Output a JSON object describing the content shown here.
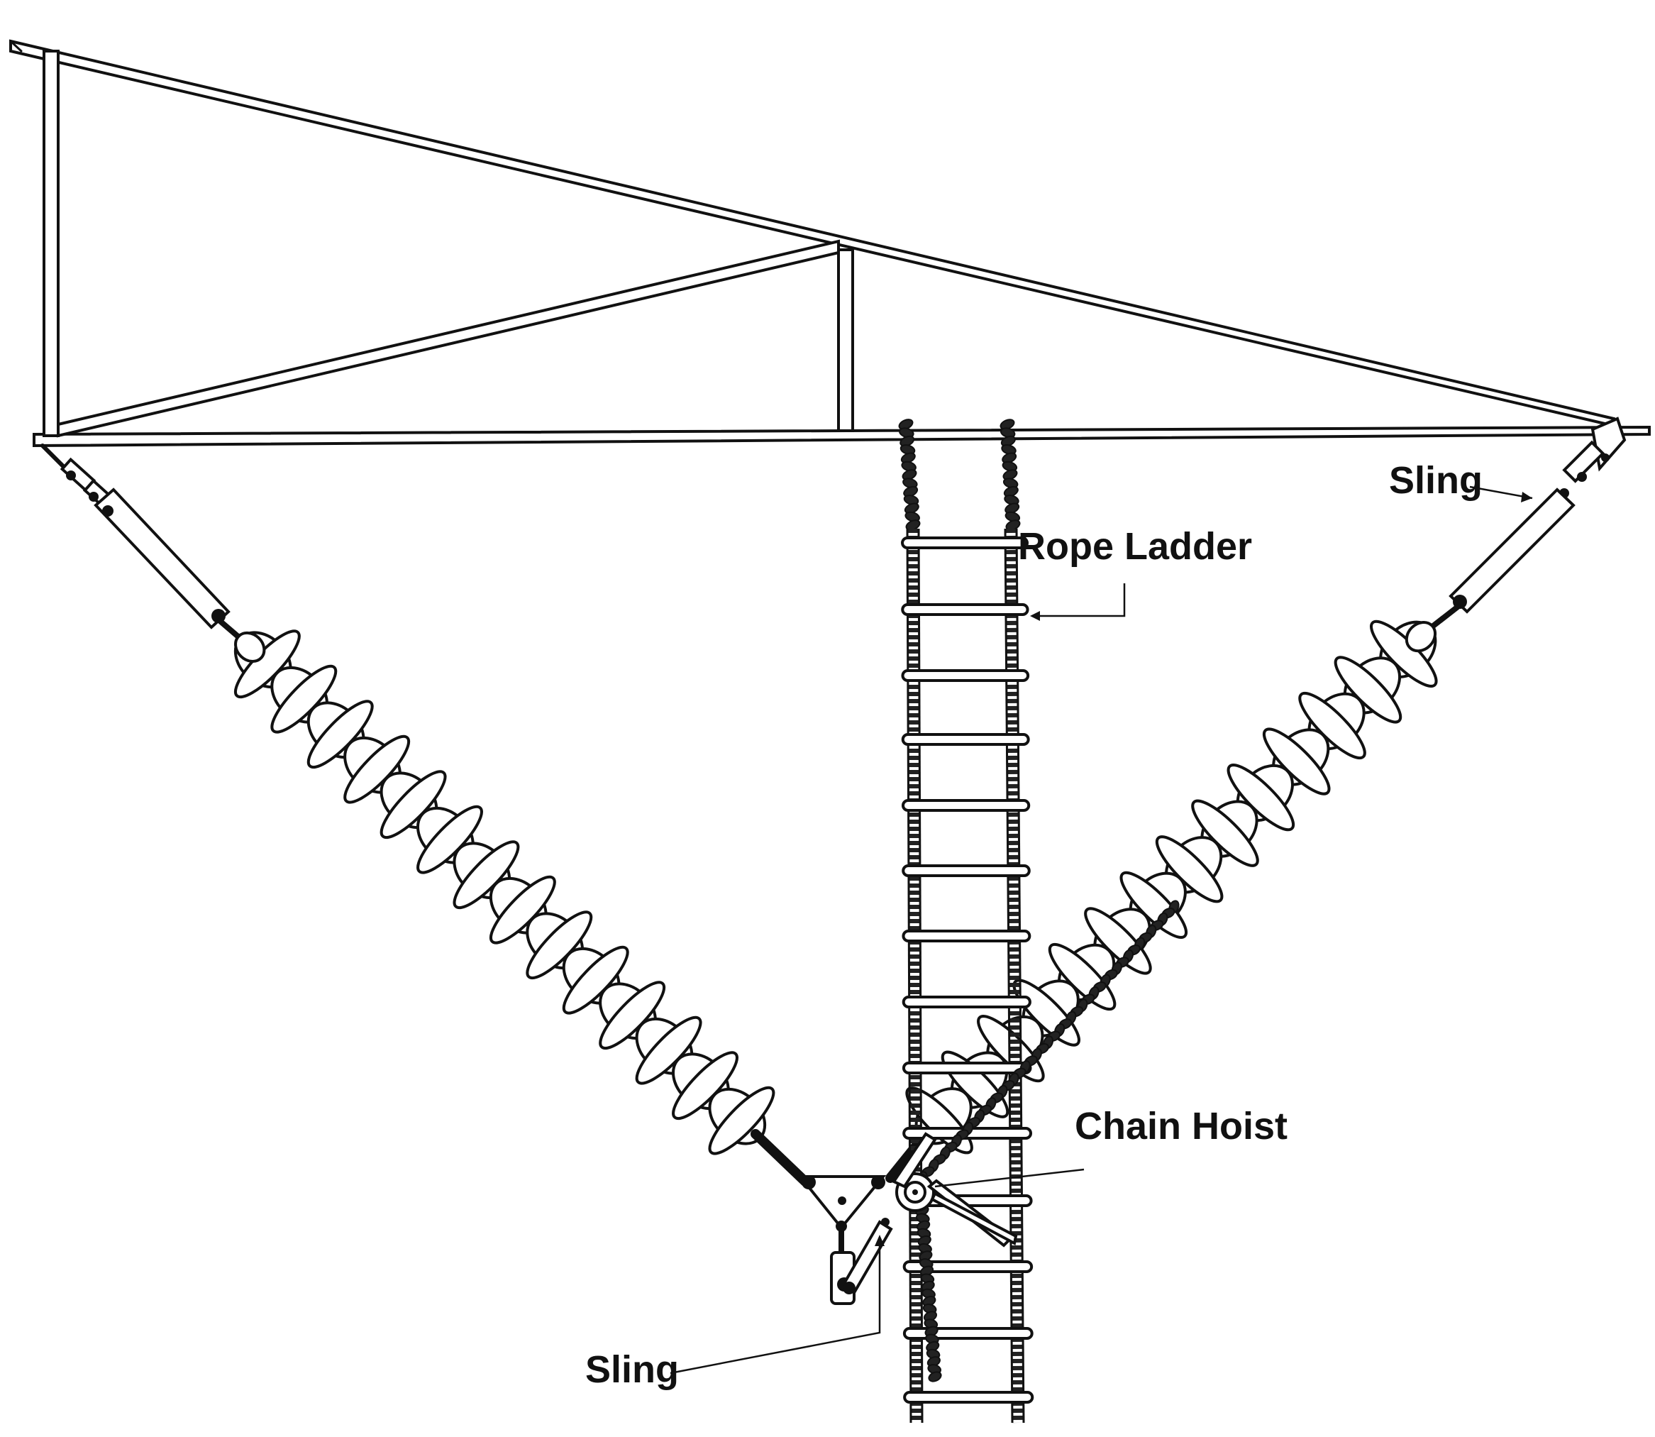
{
  "labels": {
    "sling_top": "Sling",
    "rope_ladder": "Rope Ladder",
    "chain_hoist": "Chain Hoist",
    "sling_bottom": "Sling"
  }
}
